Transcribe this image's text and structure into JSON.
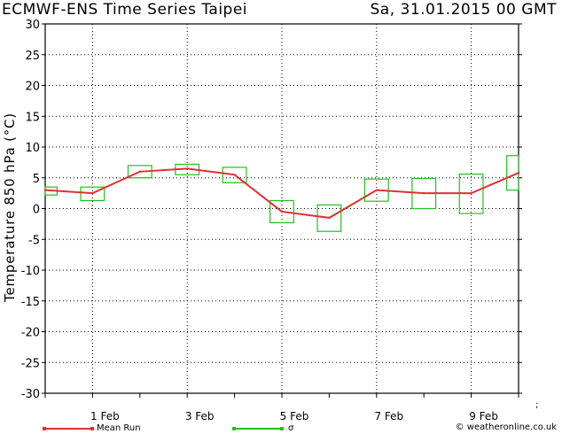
{
  "header": {
    "title": "ECMWF-ENS Time Series Taipei",
    "datestamp": "Sa, 31.01.2015 00 GMT"
  },
  "legend": {
    "mean_label": "Mean Run",
    "sigma_label": "σ"
  },
  "credit": "© weatheronline.co.uk",
  "colors": {
    "mean": "#e03030",
    "sigma": "#20c020",
    "grid": "#000000"
  },
  "chart_data": {
    "type": "line",
    "title": "ECMWF-ENS Time Series Taipei",
    "xlabel": "",
    "ylabel": "Temperature 850 hPa (°C)",
    "ylim": [
      -30,
      30
    ],
    "xlim": [
      0,
      10
    ],
    "x_unit": "days since 31.01.2015 00 GMT",
    "yticks": [
      30,
      25,
      20,
      15,
      10,
      5,
      0,
      -5,
      -10,
      -15,
      -20,
      -25,
      -30
    ],
    "xticks": [
      {
        "x": 1,
        "label": "1 Feb"
      },
      {
        "x": 3,
        "label": "3 Feb"
      },
      {
        "x": 5,
        "label": "5 Feb"
      },
      {
        "x": 7,
        "label": "7 Feb"
      },
      {
        "x": 9,
        "label": "9 Feb"
      }
    ],
    "grid": true,
    "series": [
      {
        "name": "Mean Run",
        "x": [
          0,
          1,
          2,
          3,
          4,
          5,
          6,
          7,
          8,
          9,
          10
        ],
        "values": [
          3.0,
          2.5,
          6.0,
          6.5,
          5.5,
          -0.5,
          -1.5,
          3.0,
          2.5,
          2.5,
          5.8
        ]
      }
    ],
    "sigma_boxes": [
      {
        "x": 0,
        "low": 2.2,
        "high": 3.5
      },
      {
        "x": 1,
        "low": 1.3,
        "high": 3.5
      },
      {
        "x": 2,
        "low": 5.0,
        "high": 7.0
      },
      {
        "x": 3,
        "low": 5.5,
        "high": 7.2
      },
      {
        "x": 4,
        "low": 4.2,
        "high": 6.7
      },
      {
        "x": 5,
        "low": -2.3,
        "high": 1.3
      },
      {
        "x": 6,
        "low": -3.7,
        "high": 0.6
      },
      {
        "x": 7,
        "low": 1.2,
        "high": 4.8
      },
      {
        "x": 8,
        "low": 0.0,
        "high": 4.9
      },
      {
        "x": 9,
        "low": -0.8,
        "high": 5.6
      },
      {
        "x": 10,
        "low": 3.0,
        "high": 8.6
      }
    ]
  }
}
